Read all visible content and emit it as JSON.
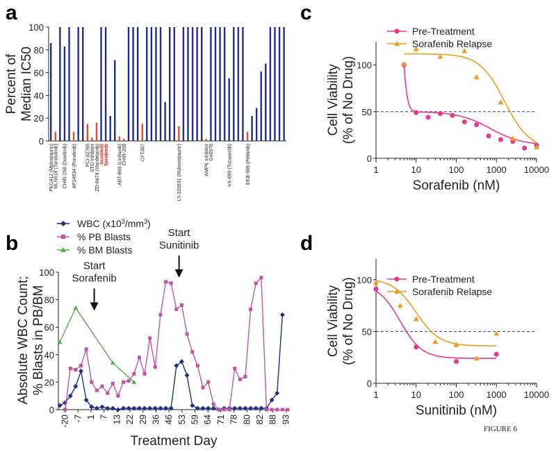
{
  "figure_label": "FIGURE 6",
  "chart_data": [
    {
      "panel": "a",
      "type": "bar",
      "ylabel": [
        "Percent of",
        "Median IC50"
      ],
      "ylim": [
        0,
        100
      ],
      "yticks": [
        0,
        20,
        40,
        60,
        80,
        100
      ],
      "colors": {
        "blue": "#1f2f8a",
        "red": "#e2502b",
        "highlight_label": "#e41a1c"
      },
      "bars": [
        {
          "c": "blue",
          "v": 86
        },
        {
          "c": "red",
          "v": 8
        },
        {
          "c": "blue",
          "v": 100
        },
        {
          "c": "blue",
          "v": 83
        },
        {
          "c": "blue",
          "v": 100
        },
        {
          "c": "red",
          "v": 8
        },
        {
          "c": "blue",
          "v": 100
        },
        {
          "c": "blue",
          "v": 100
        },
        {
          "c": "red",
          "v": 15
        },
        {
          "c": "red",
          "v": 3
        },
        {
          "c": "red",
          "v": 16
        },
        {
          "c": "blue",
          "v": 100
        },
        {
          "c": "blue",
          "v": 100
        },
        {
          "c": "blue",
          "v": 22
        },
        {
          "c": "blue",
          "v": 71
        },
        {
          "c": "red",
          "v": 4
        },
        {
          "c": "red",
          "v": 2
        },
        {
          "c": "blue",
          "v": 100
        },
        {
          "c": "blue",
          "v": 100
        },
        {
          "c": "blue",
          "v": 100
        },
        {
          "c": "red",
          "v": 15
        },
        {
          "c": "blue",
          "v": 100
        },
        {
          "c": "blue",
          "v": 100
        },
        {
          "c": "blue",
          "v": 100
        },
        {
          "c": "blue",
          "v": 100
        },
        {
          "c": "blue",
          "v": 34
        },
        {
          "c": "blue",
          "v": 100
        },
        {
          "c": "blue",
          "v": 100
        },
        {
          "c": "red",
          "v": 13
        },
        {
          "c": "blue",
          "v": 100
        },
        {
          "c": "blue",
          "v": 100
        },
        {
          "c": "blue",
          "v": 100
        },
        {
          "c": "blue",
          "v": 100
        },
        {
          "c": "blue",
          "v": 100
        },
        {
          "c": "red",
          "v": 2
        },
        {
          "c": "blue",
          "v": 100
        },
        {
          "c": "blue",
          "v": 100
        },
        {
          "c": "blue",
          "v": 100
        },
        {
          "c": "blue",
          "v": 100
        },
        {
          "c": "blue",
          "v": 55
        },
        {
          "c": "blue",
          "v": 100
        },
        {
          "c": "blue",
          "v": 100
        },
        {
          "c": "blue",
          "v": 100
        },
        {
          "c": "red",
          "v": 8
        },
        {
          "c": "blue",
          "v": 22
        },
        {
          "c": "blue",
          "v": 29
        },
        {
          "c": "blue",
          "v": 61
        },
        {
          "c": "blue",
          "v": 68
        },
        {
          "c": "blue",
          "v": 100
        },
        {
          "c": "blue",
          "v": 100
        },
        {
          "c": "blue",
          "v": 100
        },
        {
          "c": "blue",
          "v": 100
        }
      ],
      "drug_labels": [
        {
          "text": "PKC412 (Midostaurin)",
          "bar": 0,
          "highlight": false
        },
        {
          "text": "MLN518 (Tandutinib)",
          "bar": 1,
          "highlight": false
        },
        {
          "text": "CHIR-258 (Dovitinib)",
          "bar": 3,
          "highlight": false
        },
        {
          "text": "AP24534 (Ponatinib)",
          "bar": 5,
          "highlight": false
        },
        {
          "text": "PCI-32765",
          "bar": 8,
          "highlight": false
        },
        {
          "text": "STO Inhibitor",
          "bar": 9,
          "highlight": false
        },
        {
          "text": "ZD-6474 (Vandetanib)",
          "bar": 10,
          "highlight": false
        },
        {
          "text": "Sunitinib",
          "bar": 11,
          "highlight": true
        },
        {
          "text": "Sorafenib",
          "bar": 12,
          "highlight": true
        },
        {
          "text": "ABT-869 (Linifanib)",
          "bar": 15,
          "highlight": false
        },
        {
          "text": "CHIR-265",
          "bar": 16,
          "highlight": false
        },
        {
          "text": "CYT387",
          "bar": 20,
          "highlight": false
        },
        {
          "text": "LY-333531 (Ruboxistaurin)",
          "bar": 28,
          "highlight": false
        },
        {
          "text": "AMPK Inhibitor",
          "bar": 34,
          "highlight": false
        },
        {
          "text": "Go6976",
          "bar": 35,
          "highlight": false
        },
        {
          "text": "VX-680 (Tozasertib)",
          "bar": 39,
          "highlight": false
        },
        {
          "text": "EKB-569 (Pelitinib)",
          "bar": 43,
          "highlight": false
        }
      ]
    },
    {
      "panel": "b",
      "type": "line",
      "xlabel": "Treatment Day",
      "ylabel": [
        "Absolute WBC Count;",
        "% Blasts in PB/BM"
      ],
      "ylim": [
        0,
        100
      ],
      "yticks": [
        0,
        20,
        40,
        60,
        80,
        100
      ],
      "xtick_labels": [
        "-20",
        "-7",
        "1",
        "7",
        "13",
        "22",
        "29",
        "36",
        "46",
        "53",
        "59",
        "64",
        "71",
        "78",
        "80",
        "82",
        "88",
        "93"
      ],
      "annotations": [
        {
          "lines": [
            "Start",
            "Sorafenib"
          ],
          "x_index": 6.5,
          "y": 72
        },
        {
          "lines": [
            "Start",
            "Sunitinib"
          ],
          "x_index": 22.5,
          "y": 96
        }
      ],
      "series": [
        {
          "name_prefix": "WBC (x10",
          "name_sup": "3",
          "name_suffix": "/mm",
          "name_sup2": "3",
          "name_end": ")",
          "color": "#1f2f8a",
          "marker": "diamond",
          "x_index": [
            0,
            1,
            2,
            3,
            4,
            5,
            6,
            7,
            8,
            9,
            10,
            11,
            12,
            13,
            14,
            15,
            16,
            17,
            18,
            19,
            20,
            21,
            22,
            23,
            24,
            25,
            26,
            27,
            28,
            29,
            30,
            31,
            32,
            33,
            34,
            35,
            36,
            37,
            38,
            39,
            40,
            41,
            42
          ],
          "values": [
            3,
            5,
            10,
            17,
            28,
            7,
            2,
            1,
            2,
            1,
            1,
            0,
            1,
            1,
            1,
            1,
            1,
            1,
            1,
            1,
            1,
            1,
            32,
            35,
            25,
            3,
            1,
            1,
            1,
            1,
            0,
            1,
            1,
            1,
            1,
            1,
            1,
            1,
            1,
            1,
            7,
            12,
            69
          ]
        },
        {
          "name": "% PB Blasts",
          "color": "#c154a8",
          "marker": "square",
          "x_index": [
            1,
            2,
            3,
            4,
            5,
            6,
            7,
            8,
            9,
            10,
            11,
            12,
            13,
            14,
            15,
            16,
            17,
            18,
            19,
            20,
            21,
            22,
            23,
            24,
            25,
            26,
            27,
            28,
            29,
            30,
            31,
            32,
            33,
            34,
            35,
            36,
            37,
            38,
            39,
            40,
            41,
            42,
            43
          ],
          "values": [
            0,
            30,
            29,
            32,
            44,
            20,
            14,
            17,
            12,
            19,
            10,
            20,
            21,
            26,
            38,
            26,
            52,
            31,
            69,
            93,
            92,
            73,
            76,
            55,
            42,
            32,
            16,
            20,
            4,
            0,
            0,
            0,
            30,
            22,
            24,
            73,
            92,
            96,
            0,
            0,
            0,
            0,
            0
          ]
        },
        {
          "name": "% BM Blasts",
          "color": "#4db345",
          "marker": "triangle",
          "x_index": [
            0,
            3,
            10,
            14
          ],
          "values": [
            49,
            74,
            34,
            20
          ]
        }
      ]
    },
    {
      "panel": "c",
      "type": "scatter",
      "xlabel": "Sorafenib (nM)",
      "ylabel": [
        "Cell Viability",
        "(% of No Drug)"
      ],
      "xscale": "log",
      "xlim": [
        1,
        10000
      ],
      "ylim": [
        0,
        125
      ],
      "yticks": [
        0,
        50,
        100
      ],
      "xtick_labels": [
        "1",
        "10",
        "100",
        "1000",
        "10000"
      ],
      "reference_line": 50,
      "series": [
        {
          "name": "Pre-Treatment",
          "color": "#e8388a",
          "marker": "circle",
          "x": [
            5,
            10,
            20,
            40,
            80,
            160,
            320,
            640,
            1280,
            2560,
            5000,
            10000
          ],
          "y": [
            100,
            49,
            44,
            48,
            46,
            39,
            36,
            24,
            20,
            18,
            11,
            14
          ],
          "curve": {
            "top": 50,
            "bottom": 14,
            "ic50": 700,
            "hill": 1.1,
            "steep_top": 100,
            "steep_x0": 5
          }
        },
        {
          "name": "Sorafenib Relapse",
          "color": "#f39a1e",
          "marker": "triangle",
          "x": [
            5,
            10,
            40,
            160,
            320,
            1280,
            2560,
            10000
          ],
          "y": [
            101,
            117,
            109,
            115,
            87,
            60,
            21,
            12
          ],
          "curve": {
            "top": 112,
            "bottom": 10,
            "ic50": 1600,
            "hill": 1.4
          }
        }
      ]
    },
    {
      "panel": "d",
      "type": "scatter",
      "xlabel": "Sunitinib (nM)",
      "ylabel": [
        "Cell Viability",
        "(% of No Drug)"
      ],
      "xscale": "log",
      "xlim": [
        1,
        10000
      ],
      "ylim": [
        0,
        120
      ],
      "yticks": [
        0,
        50,
        100
      ],
      "xtick_labels": [
        "1",
        "10",
        "100",
        "1000",
        "10000"
      ],
      "reference_line": 50,
      "series": [
        {
          "name": "Pre-Treatment",
          "color": "#e8388a",
          "marker": "circle",
          "x": [
            1,
            10,
            100,
            1000
          ],
          "y": [
            91,
            35,
            21,
            28
          ],
          "curve": {
            "top": 96,
            "bottom": 24,
            "ic50": 4,
            "hill": 1.6
          }
        },
        {
          "name": "Sorafenib Relapse",
          "color": "#f39a1e",
          "marker": "triangle",
          "x": [
            1,
            4,
            10,
            30,
            100,
            320,
            1000
          ],
          "y": [
            97,
            75,
            62,
            40,
            37,
            24,
            48
          ],
          "curve": {
            "top": 101,
            "bottom": 36,
            "ic50": 10,
            "hill": 1.5
          }
        }
      ]
    }
  ]
}
